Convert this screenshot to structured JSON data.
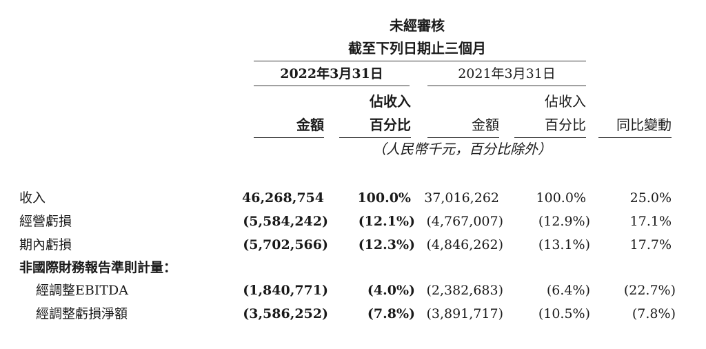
{
  "header": {
    "audit_status": "未經審核",
    "period": "截至下列日期止三個月",
    "col_2022": "2022年3月31日",
    "col_2021": "2021年3月31日",
    "amount": "金額",
    "pct_line1": "佔收入",
    "pct_line2": "百分比",
    "yoy": "同比變動",
    "unit_note": "（人民幣千元，百分比除外）"
  },
  "rows": [
    {
      "label": "收入",
      "a2022": "46,268,754",
      "p2022": "100.0%",
      "a2021": "37,016,262",
      "p2021": "100.0%",
      "yoy": "25.0%"
    },
    {
      "label": "經營虧損",
      "a2022": "(5,584,242)",
      "p2022": "(12.1%)",
      "a2021": "(4,767,007)",
      "p2021": "(12.9%)",
      "yoy": "17.1%"
    },
    {
      "label": "期內虧損",
      "a2022": "(5,702,566)",
      "p2022": "(12.3%)",
      "a2021": "(4,846,262)",
      "p2021": "(13.1%)",
      "yoy": "17.7%"
    },
    {
      "label": "經調整EBITDA",
      "a2022": "(1,840,771)",
      "p2022": "(4.0%)",
      "a2021": "(2,382,683)",
      "p2021": "(6.4%)",
      "yoy": "(22.7%)"
    },
    {
      "label": "經調整虧損淨額",
      "a2022": "(3,586,252)",
      "p2022": "(7.8%)",
      "a2021": "(3,891,717)",
      "p2021": "(10.5%)",
      "yoy": "(7.8%)"
    }
  ],
  "section_label": "非國際財務報告準則計量："
}
